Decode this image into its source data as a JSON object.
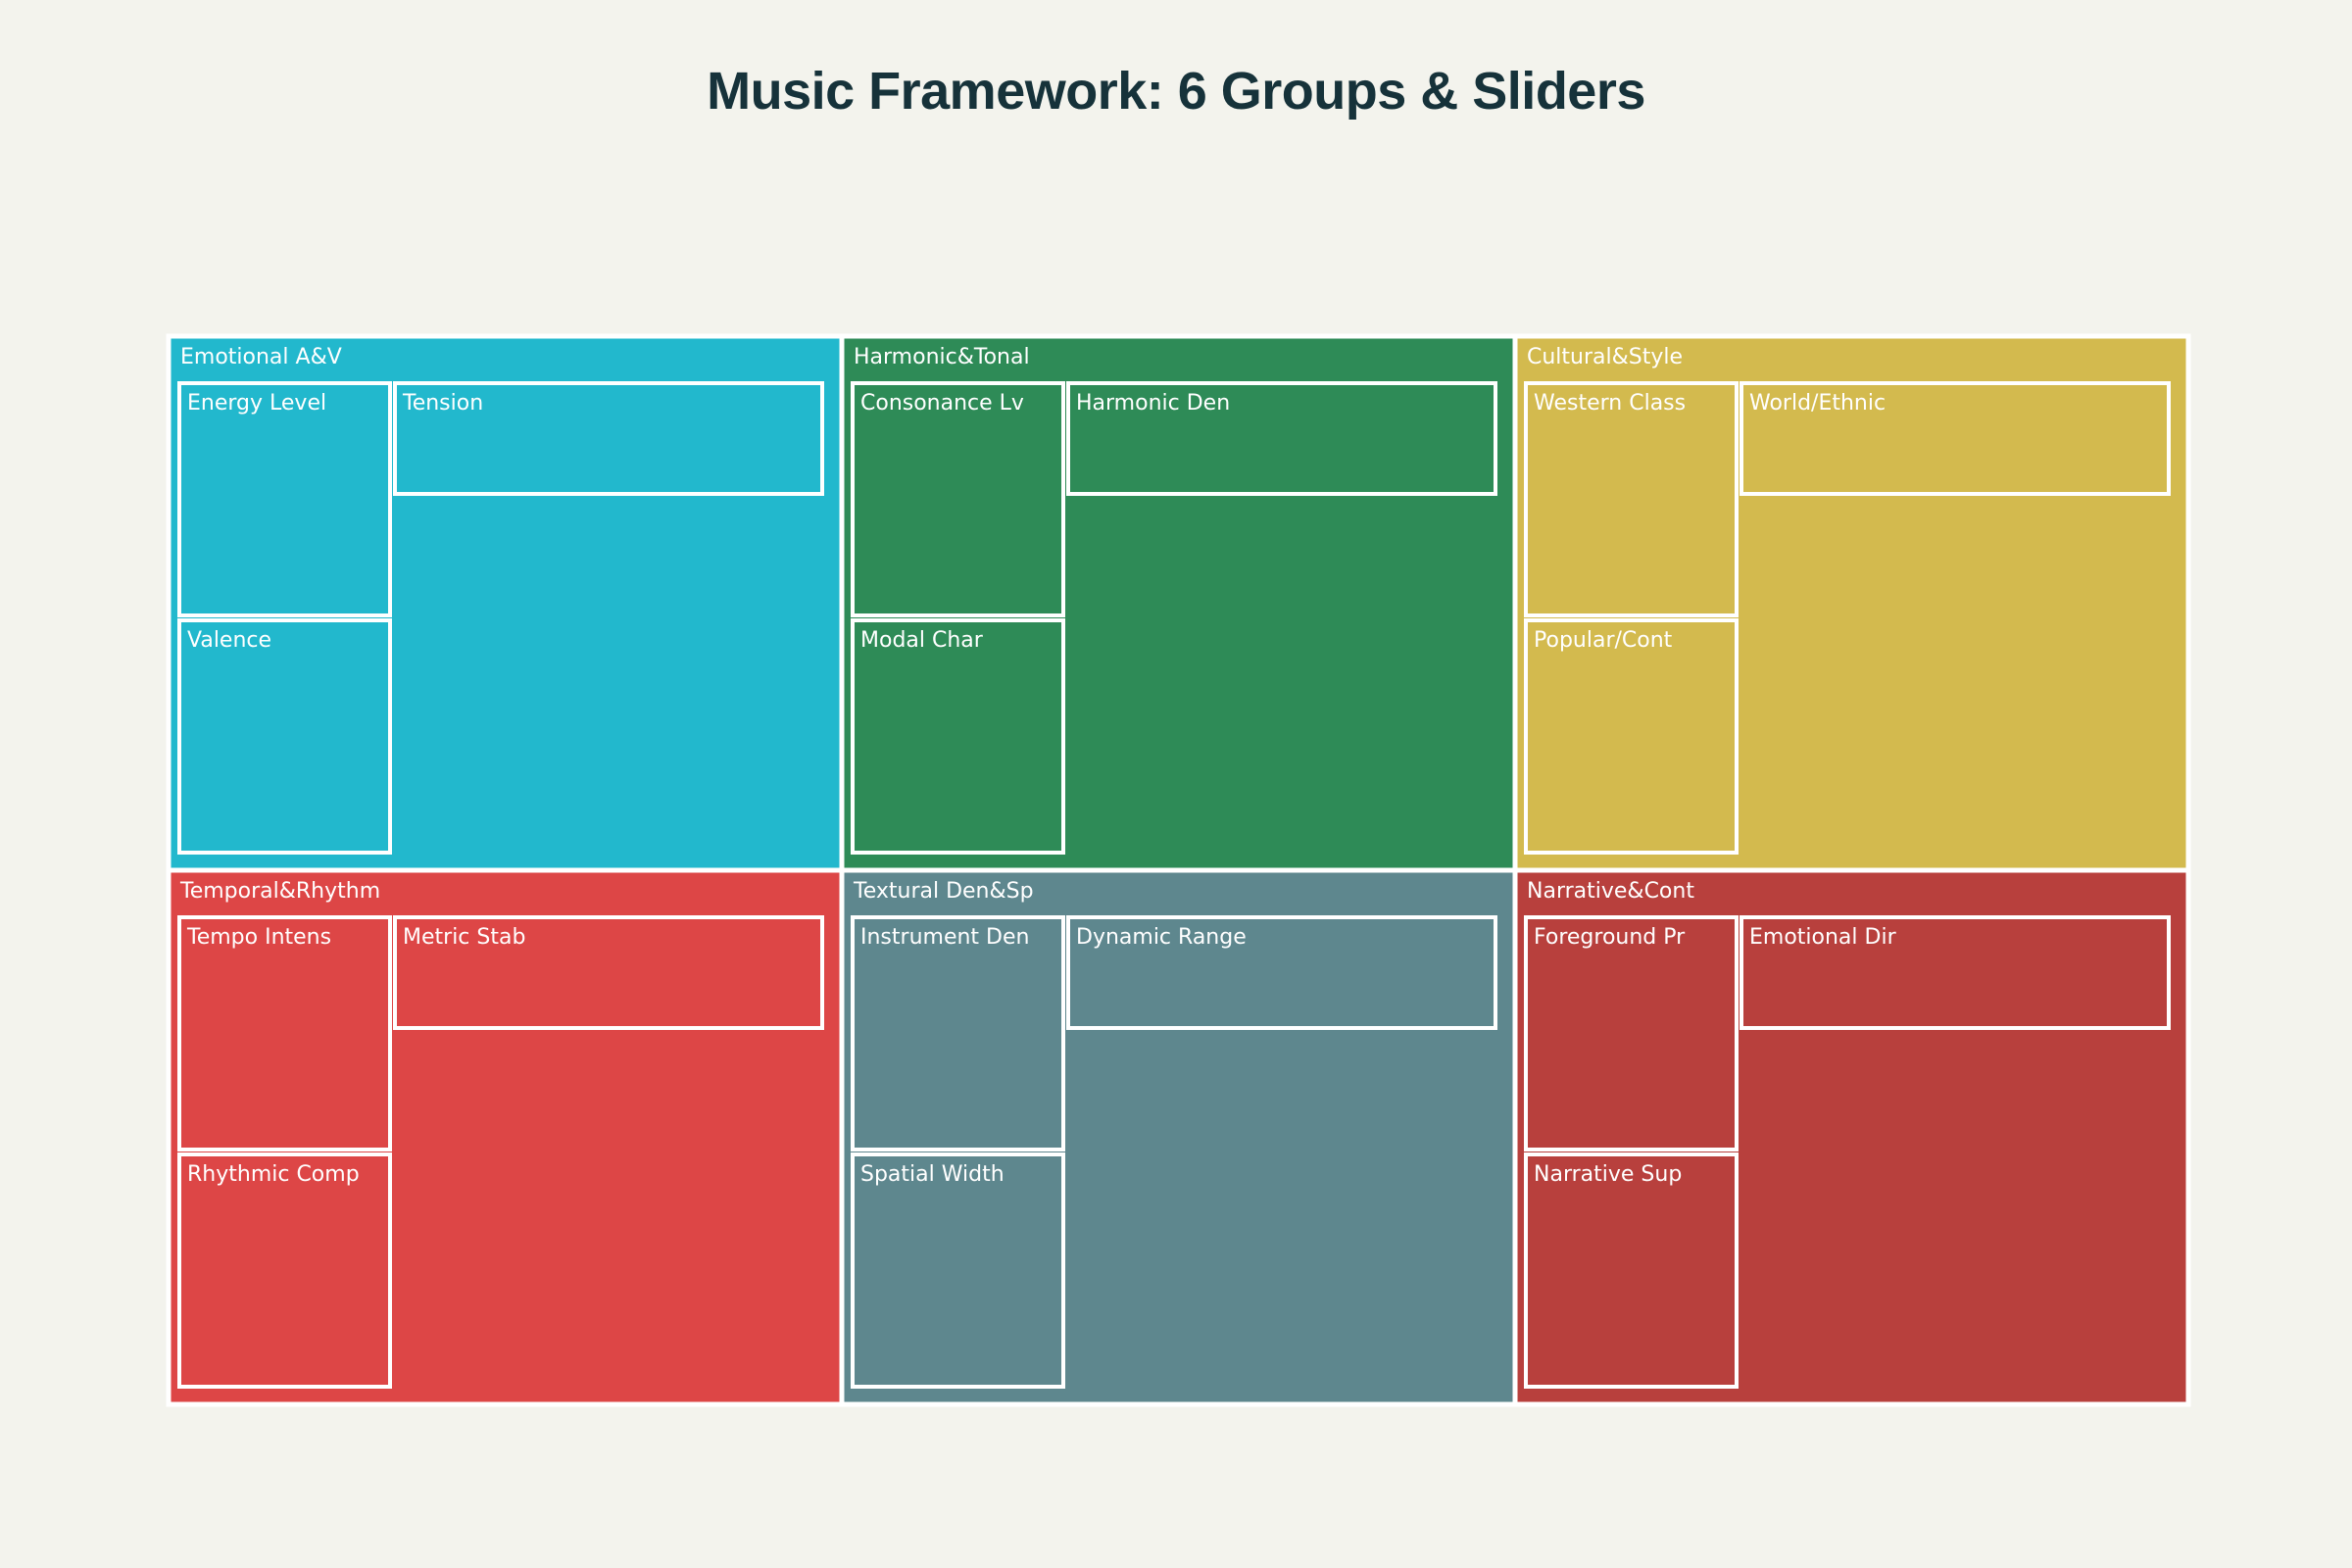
{
  "title": "Music Framework: 6 Groups & Sliders",
  "chart_data": {
    "type": "treemap",
    "title": "Music Framework: 6 Groups & Sliders",
    "groups": [
      {
        "name": "Emotional A&V",
        "color": "#22b8cd",
        "children": [
          "Energy Level",
          "Tension",
          "Valence"
        ]
      },
      {
        "name": "Harmonic&Tonal",
        "color": "#2e8b57",
        "children": [
          "Consonance Lv",
          "Harmonic Den",
          "Modal Char"
        ]
      },
      {
        "name": "Cultural&Style",
        "color": "#d3ba4e",
        "children": [
          "Western Class",
          "World/Ethnic",
          "Popular/Cont"
        ]
      },
      {
        "name": "Temporal&Rhythm",
        "color": "#dd4646",
        "children": [
          "Tempo Intens",
          "Metric Stab",
          "Rhythmic Comp"
        ]
      },
      {
        "name": "Textural Den&Sp",
        "color": "#5e878e",
        "children": [
          "Instrument Den",
          "Dynamic Range",
          "Spatial Width"
        ]
      },
      {
        "name": "Narrative&Cont",
        "color": "#b8403d",
        "children": [
          "Foreground Pr",
          "Emotional Dir",
          "Narrative Sup"
        ]
      }
    ]
  }
}
